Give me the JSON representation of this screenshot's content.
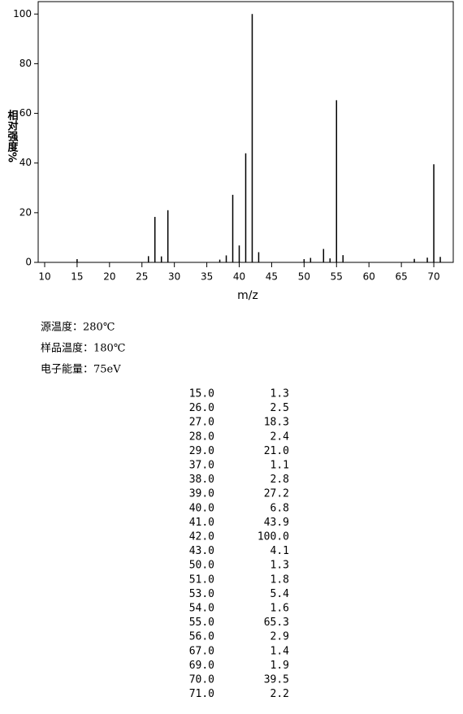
{
  "chart_data": {
    "type": "bar",
    "xlabel": "m/z",
    "ylabel": "相对强度%",
    "x": [
      15,
      26,
      27,
      28,
      29,
      37,
      38,
      39,
      40,
      41,
      42,
      43,
      50,
      51,
      53,
      54,
      55,
      56,
      67,
      69,
      70,
      71
    ],
    "values": [
      1.3,
      2.5,
      18.3,
      2.4,
      21.0,
      1.1,
      2.8,
      27.2,
      6.8,
      43.9,
      100.0,
      4.1,
      1.3,
      1.8,
      5.4,
      1.6,
      65.3,
      2.9,
      1.4,
      1.9,
      39.5,
      2.2
    ],
    "color": "#000000",
    "xlim": [
      9,
      73
    ],
    "xticks": [
      10,
      15,
      20,
      25,
      30,
      35,
      40,
      45,
      50,
      55,
      60,
      65,
      70
    ],
    "ylim": [
      0,
      105
    ],
    "yticks": [
      0,
      20,
      40,
      60,
      80,
      100
    ]
  },
  "conditions": [
    "源温度：280℃",
    "样品温度：180℃",
    "电子能量：75eV"
  ],
  "peak_table": {
    "rows": [
      [
        "15.0",
        "1.3"
      ],
      [
        "26.0",
        "2.5"
      ],
      [
        "27.0",
        "18.3"
      ],
      [
        "28.0",
        "2.4"
      ],
      [
        "29.0",
        "21.0"
      ],
      [
        "37.0",
        "1.1"
      ],
      [
        "38.0",
        "2.8"
      ],
      [
        "39.0",
        "27.2"
      ],
      [
        "40.0",
        "6.8"
      ],
      [
        "41.0",
        "43.9"
      ],
      [
        "42.0",
        "100.0"
      ],
      [
        "43.0",
        "4.1"
      ],
      [
        "50.0",
        "1.3"
      ],
      [
        "51.0",
        "1.8"
      ],
      [
        "53.0",
        "5.4"
      ],
      [
        "54.0",
        "1.6"
      ],
      [
        "55.0",
        "65.3"
      ],
      [
        "56.0",
        "2.9"
      ],
      [
        "67.0",
        "1.4"
      ],
      [
        "69.0",
        "1.9"
      ],
      [
        "70.0",
        "39.5"
      ],
      [
        "71.0",
        "2.2"
      ]
    ]
  }
}
